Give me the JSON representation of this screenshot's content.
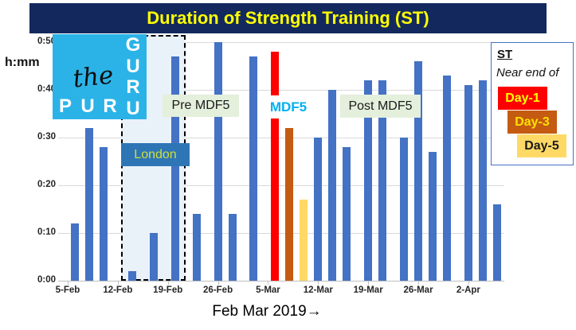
{
  "title": "Duration of Strength Training (ST)",
  "annotations": {
    "region": "London",
    "pre": "Pre MDF5",
    "mid": "MDF5",
    "post": "Post MDF5"
  },
  "logo": {
    "the": "the",
    "puru": "PURU",
    "guru": "GURU"
  },
  "legend": {
    "heading": "ST",
    "subheading": "Near end of",
    "items": [
      {
        "label": "Day-1",
        "bg": "#FF0000",
        "fg": "#FFFF00"
      },
      {
        "label": "Day-3",
        "bg": "#C55A11",
        "fg": "#FFE100"
      },
      {
        "label": "Day-5",
        "bg": "#FFD966",
        "fg": "#1A1A1A"
      }
    ]
  },
  "colors": {
    "bar": "#4472C4",
    "title_bg": "#13295E",
    "title_fg": "#FFFF00",
    "logo_bg": "#2BB3E8",
    "mdf5_fg": "#00B0F0",
    "phase_bg": "#E4EFDC",
    "london_bg": "#2E75B6",
    "london_fg": "#CDE03C",
    "grid": "#D9D9D9"
  },
  "chart_data": {
    "type": "bar",
    "title": "Duration of Strength Training (ST)",
    "ylabel": "h:mm",
    "xlabel": "Feb  Mar 2019→",
    "ylim": [
      "0:00",
      "0:50"
    ],
    "grid": true,
    "legend_position": "right",
    "y_ticks": [
      "0:50",
      "0:40",
      "0:30",
      "0:20",
      "0:10",
      "0:00"
    ],
    "x_ticks": [
      "5-Feb",
      "12-Feb",
      "19-Feb",
      "26-Feb",
      "5-Mar",
      "12-Mar",
      "19-Mar",
      "26-Mar",
      "2-Apr"
    ],
    "bars": [
      {
        "date": "6-Feb",
        "duration": "0:12",
        "minutes": 12,
        "group": "ST"
      },
      {
        "date": "8-Feb",
        "duration": "0:32",
        "minutes": 32,
        "group": "ST"
      },
      {
        "date": "10-Feb",
        "duration": "0:28",
        "minutes": 28,
        "group": "ST"
      },
      {
        "date": "14-Feb",
        "duration": "0:02",
        "minutes": 2,
        "group": "ST"
      },
      {
        "date": "17-Feb",
        "duration": "0:10",
        "minutes": 10,
        "group": "ST"
      },
      {
        "date": "20-Feb",
        "duration": "0:47",
        "minutes": 47,
        "group": "ST"
      },
      {
        "date": "23-Feb",
        "duration": "0:14",
        "minutes": 14,
        "group": "ST"
      },
      {
        "date": "26-Feb",
        "duration": "0:50",
        "minutes": 50,
        "group": "ST"
      },
      {
        "date": "28-Feb",
        "duration": "0:14",
        "minutes": 14,
        "group": "ST"
      },
      {
        "date": "3-Mar",
        "duration": "0:47",
        "minutes": 47,
        "group": "ST"
      },
      {
        "date": "6-Mar",
        "duration": "0:48",
        "minutes": 48,
        "group": "Day-1"
      },
      {
        "date": "8-Mar",
        "duration": "0:32",
        "minutes": 32,
        "group": "Day-3"
      },
      {
        "date": "10-Mar",
        "duration": "0:17",
        "minutes": 17,
        "group": "Day-5"
      },
      {
        "date": "12-Mar",
        "duration": "0:30",
        "minutes": 30,
        "group": "ST"
      },
      {
        "date": "14-Mar",
        "duration": "0:40",
        "minutes": 40,
        "group": "ST"
      },
      {
        "date": "16-Mar",
        "duration": "0:28",
        "minutes": 28,
        "group": "ST"
      },
      {
        "date": "19-Mar",
        "duration": "0:42",
        "minutes": 42,
        "group": "ST"
      },
      {
        "date": "21-Mar",
        "duration": "0:42",
        "minutes": 42,
        "group": "ST"
      },
      {
        "date": "24-Mar",
        "duration": "0:30",
        "minutes": 30,
        "group": "ST"
      },
      {
        "date": "26-Mar",
        "duration": "0:46",
        "minutes": 46,
        "group": "ST"
      },
      {
        "date": "28-Mar",
        "duration": "0:27",
        "minutes": 27,
        "group": "ST"
      },
      {
        "date": "30-Mar",
        "duration": "0:43",
        "minutes": 43,
        "group": "ST"
      },
      {
        "date": "2-Apr",
        "duration": "0:41",
        "minutes": 41,
        "group": "ST"
      },
      {
        "date": "4-Apr",
        "duration": "0:42",
        "minutes": 42,
        "group": "ST"
      },
      {
        "date": "6-Apr",
        "duration": "0:16",
        "minutes": 16,
        "group": "ST"
      }
    ],
    "regions": [
      {
        "label": "London",
        "approx_span": [
          "12-Feb",
          "21-Feb"
        ]
      }
    ],
    "phase_labels": [
      "Pre MDF5",
      "MDF5",
      "Post MDF5"
    ]
  }
}
